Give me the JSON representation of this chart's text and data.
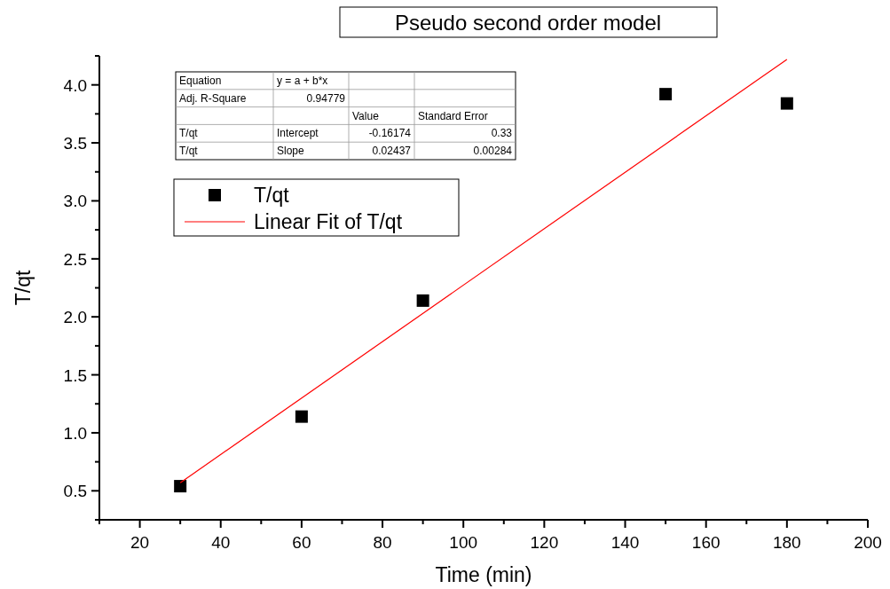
{
  "chart_data": {
    "type": "scatter",
    "title": "Pseudo second order model",
    "xlabel": "Time (min)",
    "ylabel": "T/qt",
    "xlim": [
      10,
      200
    ],
    "xticks": [
      {
        "value": 10,
        "label": null
      },
      20,
      {
        "value": 30,
        "label": null
      },
      40,
      {
        "value": 50,
        "label": null
      },
      60,
      {
        "value": 70,
        "label": null
      },
      80,
      {
        "value": 90,
        "label": null
      },
      100,
      {
        "value": 110,
        "label": null
      },
      120,
      {
        "value": 130,
        "label": null
      },
      140,
      {
        "value": 150,
        "label": null
      },
      160,
      {
        "value": 170,
        "label": null
      },
      180,
      {
        "value": 190,
        "label": null
      },
      200
    ],
    "ylim": [
      0.25,
      4.25
    ],
    "yticks": [
      {
        "value": 0.25,
        "label": null
      },
      {
        "value": 0.5,
        "label": "0.5"
      },
      {
        "value": 0.75,
        "label": null
      },
      {
        "value": 1,
        "label": "1.0"
      },
      {
        "value": 1.25,
        "label": null
      },
      {
        "value": 1.5,
        "label": "1.5"
      },
      {
        "value": 1.75,
        "label": null
      },
      {
        "value": 2,
        "label": "2.0"
      },
      {
        "value": 2.25,
        "label": null
      },
      {
        "value": 2.5,
        "label": "2.5"
      },
      {
        "value": 2.75,
        "label": null
      },
      {
        "value": 3,
        "label": "3.0"
      },
      {
        "value": 3.25,
        "label": null
      },
      {
        "value": 3.5,
        "label": "3.5"
      },
      {
        "value": 3.75,
        "label": null
      },
      {
        "value": 4,
        "label": "4.0"
      },
      {
        "value": 4.25,
        "label": null
      }
    ],
    "series": [
      {
        "name": "T/qt",
        "marker": "square",
        "color": "#000000",
        "x": [
          30,
          60,
          90,
          150,
          180
        ],
        "values": [
          0.54,
          1.14,
          2.14,
          3.92,
          3.84
        ]
      },
      {
        "name": "Linear Fit of T/qt",
        "type": "line",
        "marker": "none",
        "color": "#ff0000",
        "x": [
          30,
          180
        ],
        "values": [
          0.57,
          4.22
        ]
      }
    ],
    "legend": "top left",
    "grid": false,
    "annotations": [
      "Equation",
      "y = a + b*x",
      "Adj. R-Square",
      "0.94779",
      "Value",
      "Standard Error",
      "T/qt",
      "Intercept",
      "-0.16174",
      "0.33",
      "T/qt",
      "Slope",
      "0.02437",
      "0.00284"
    ]
  }
}
